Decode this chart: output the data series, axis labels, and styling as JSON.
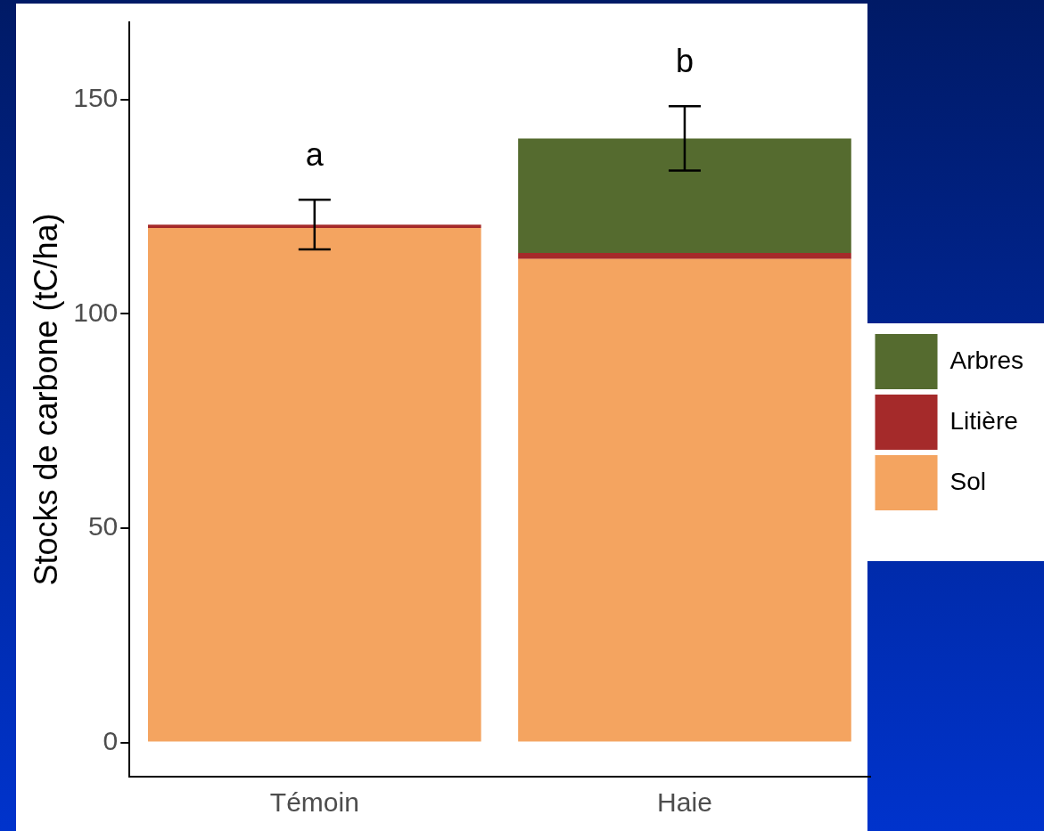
{
  "chart_data": {
    "type": "bar",
    "ylabel": "Stocks de carbone (tC/ha)",
    "categories": [
      "Témoin",
      "Haie"
    ],
    "stacked": true,
    "series": [
      {
        "name": "Sol",
        "color": "#f4a460",
        "values": [
          120,
          112.8
        ]
      },
      {
        "name": "Litière",
        "color": "#a52a2a",
        "values": [
          0.8,
          1.4
        ]
      },
      {
        "name": "Arbres",
        "color": "#556b2f",
        "values": [
          0,
          26.7
        ],
        "errors": [
          5.8,
          7.5
        ]
      }
    ],
    "annotations": [
      "a",
      "b"
    ],
    "ylim": [
      -8,
      168
    ],
    "yticks": [
      0,
      50,
      100,
      150
    ],
    "grid": false,
    "legend": "right"
  }
}
